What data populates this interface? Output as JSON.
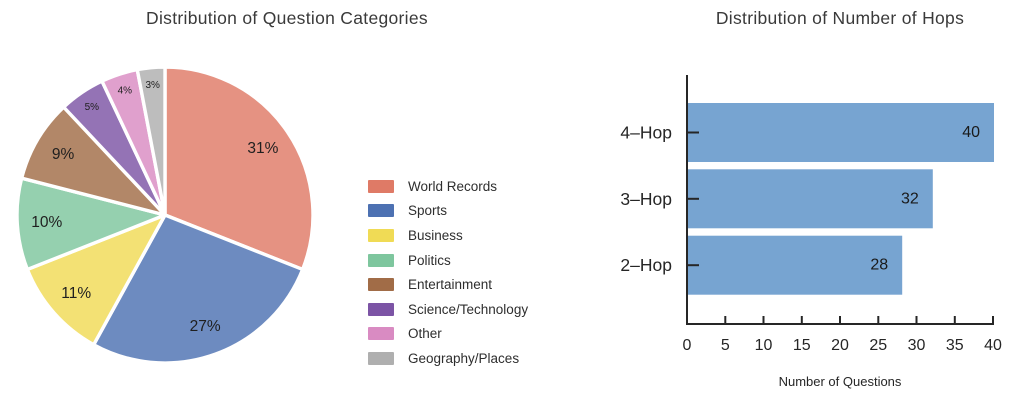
{
  "chart_data": [
    {
      "type": "pie",
      "title": "Distribution of Question Categories",
      "unit": "%",
      "start_angle_deg": 90,
      "direction": "clockwise",
      "legend_position": "right",
      "slices": [
        {
          "label": "World Records",
          "value": 31,
          "color": "#DF7A66"
        },
        {
          "label": "Sports",
          "value": 27,
          "color": "#4D71B2"
        },
        {
          "label": "Business",
          "value": 11,
          "color": "#F0DB55"
        },
        {
          "label": "Politics",
          "value": 10,
          "color": "#7EC69E"
        },
        {
          "label": "Entertainment",
          "value": 9,
          "color": "#A16C47"
        },
        {
          "label": "Science/Technology",
          "value": 5,
          "color": "#7C54A5"
        },
        {
          "label": "Other",
          "value": 4,
          "color": "#D98BC2"
        },
        {
          "label": "Geography/Places",
          "value": 3,
          "color": "#AFAFAF"
        }
      ]
    },
    {
      "type": "bar",
      "orientation": "horizontal",
      "title": "Distribution of Number of Hops",
      "categories": [
        "4–Hop",
        "3–Hop",
        "2–Hop"
      ],
      "values": [
        40,
        32,
        28
      ],
      "bar_color": "#77A4D1",
      "axis_color": "#262626",
      "xlabel": "Number of Questions",
      "xlim": [
        0,
        40
      ],
      "xticks": [
        0,
        5,
        10,
        15,
        20,
        25,
        30,
        35,
        40
      ],
      "grid": false
    }
  ]
}
